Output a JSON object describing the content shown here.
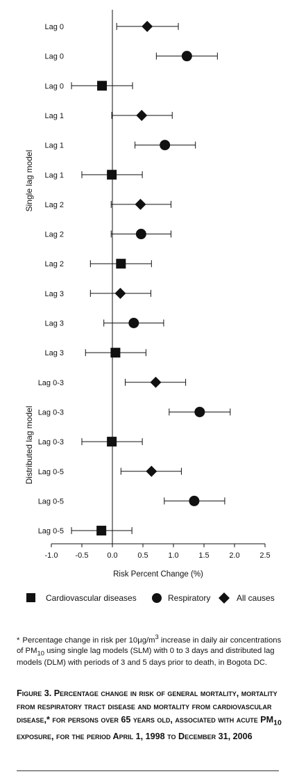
{
  "chart_data": {
    "type": "forest",
    "xlabel": "Risk Percent Change (%)",
    "xlim": [
      -1.0,
      2.5
    ],
    "xticks": [
      "-1.0",
      "-0.5",
      "0.0",
      "0.5",
      "1.0",
      "1.5",
      "2.0",
      "2.5"
    ],
    "xtick_values": [
      -1.0,
      -0.5,
      0.0,
      0.5,
      1.0,
      1.5,
      2.0,
      2.5
    ],
    "group_labels": [
      "Single lag model",
      "Distributed lag model"
    ],
    "legend": {
      "position": "bottom",
      "entries": [
        {
          "label": "Cardiovascular diseases",
          "marker": "square"
        },
        {
          "label": "Respiratory",
          "marker": "circle"
        },
        {
          "label": "All causes",
          "marker": "diamond"
        }
      ]
    },
    "rows": [
      {
        "label": "Lag 0",
        "marker": "diamond",
        "est": 0.57,
        "lo": 0.07,
        "hi": 1.08
      },
      {
        "label": "Lag 0",
        "marker": "circle",
        "est": 1.22,
        "lo": 0.72,
        "hi": 1.72
      },
      {
        "label": "Lag 0",
        "marker": "square",
        "est": -0.17,
        "lo": -0.67,
        "hi": 0.33
      },
      {
        "label": "Lag 1",
        "marker": "diamond",
        "est": 0.48,
        "lo": -0.01,
        "hi": 0.98
      },
      {
        "label": "Lag 1",
        "marker": "circle",
        "est": 0.86,
        "lo": 0.37,
        "hi": 1.36
      },
      {
        "label": "Lag 1",
        "marker": "square",
        "est": -0.01,
        "lo": -0.5,
        "hi": 0.49
      },
      {
        "label": "Lag 2",
        "marker": "diamond",
        "est": 0.46,
        "lo": -0.02,
        "hi": 0.96
      },
      {
        "label": "Lag 2",
        "marker": "circle",
        "est": 0.47,
        "lo": -0.02,
        "hi": 0.96
      },
      {
        "label": "Lag 2",
        "marker": "square",
        "est": 0.14,
        "lo": -0.36,
        "hi": 0.64
      },
      {
        "label": "Lag 3",
        "marker": "diamond",
        "est": 0.13,
        "lo": -0.36,
        "hi": 0.63
      },
      {
        "label": "Lag 3",
        "marker": "circle",
        "est": 0.35,
        "lo": -0.14,
        "hi": 0.84
      },
      {
        "label": "Lag 3",
        "marker": "square",
        "est": 0.05,
        "lo": -0.44,
        "hi": 0.55
      },
      {
        "label": "Lag 0-3",
        "marker": "diamond",
        "est": 0.71,
        "lo": 0.21,
        "hi": 1.2
      },
      {
        "label": "Lag 0-3",
        "marker": "circle",
        "est": 1.43,
        "lo": 0.93,
        "hi": 1.93
      },
      {
        "label": "Lag 0-3",
        "marker": "square",
        "est": -0.01,
        "lo": -0.5,
        "hi": 0.49
      },
      {
        "label": "Lag 0-5",
        "marker": "diamond",
        "est": 0.64,
        "lo": 0.14,
        "hi": 1.13
      },
      {
        "label": "Lag 0-5",
        "marker": "circle",
        "est": 1.34,
        "lo": 0.85,
        "hi": 1.84
      },
      {
        "label": "Lag 0-5",
        "marker": "square",
        "est": -0.18,
        "lo": -0.67,
        "hi": 0.32
      }
    ]
  },
  "footnote": {
    "star": "*",
    "p1": "Percentage change in risk per 10μg/m",
    "sup3": "3",
    "p2": " increase in daily air concentrations of PM",
    "sub10": "10",
    "p3": " using single lag models (SLM) with 0 to 3 days and distributed lag models (DLM) with periods of 3 and 5 days prior to death, in Bogota DC."
  },
  "caption": {
    "p1": "Figure 3. Percentage change in risk of general mortality, mortality from respiratory tract disease and mortality from cardiovascular disease,* for persons over 65 years old, associated with acute PM",
    "sub10": "10",
    "p2": " exposure, for the period April 1, 1998 to December 31, 2006"
  }
}
